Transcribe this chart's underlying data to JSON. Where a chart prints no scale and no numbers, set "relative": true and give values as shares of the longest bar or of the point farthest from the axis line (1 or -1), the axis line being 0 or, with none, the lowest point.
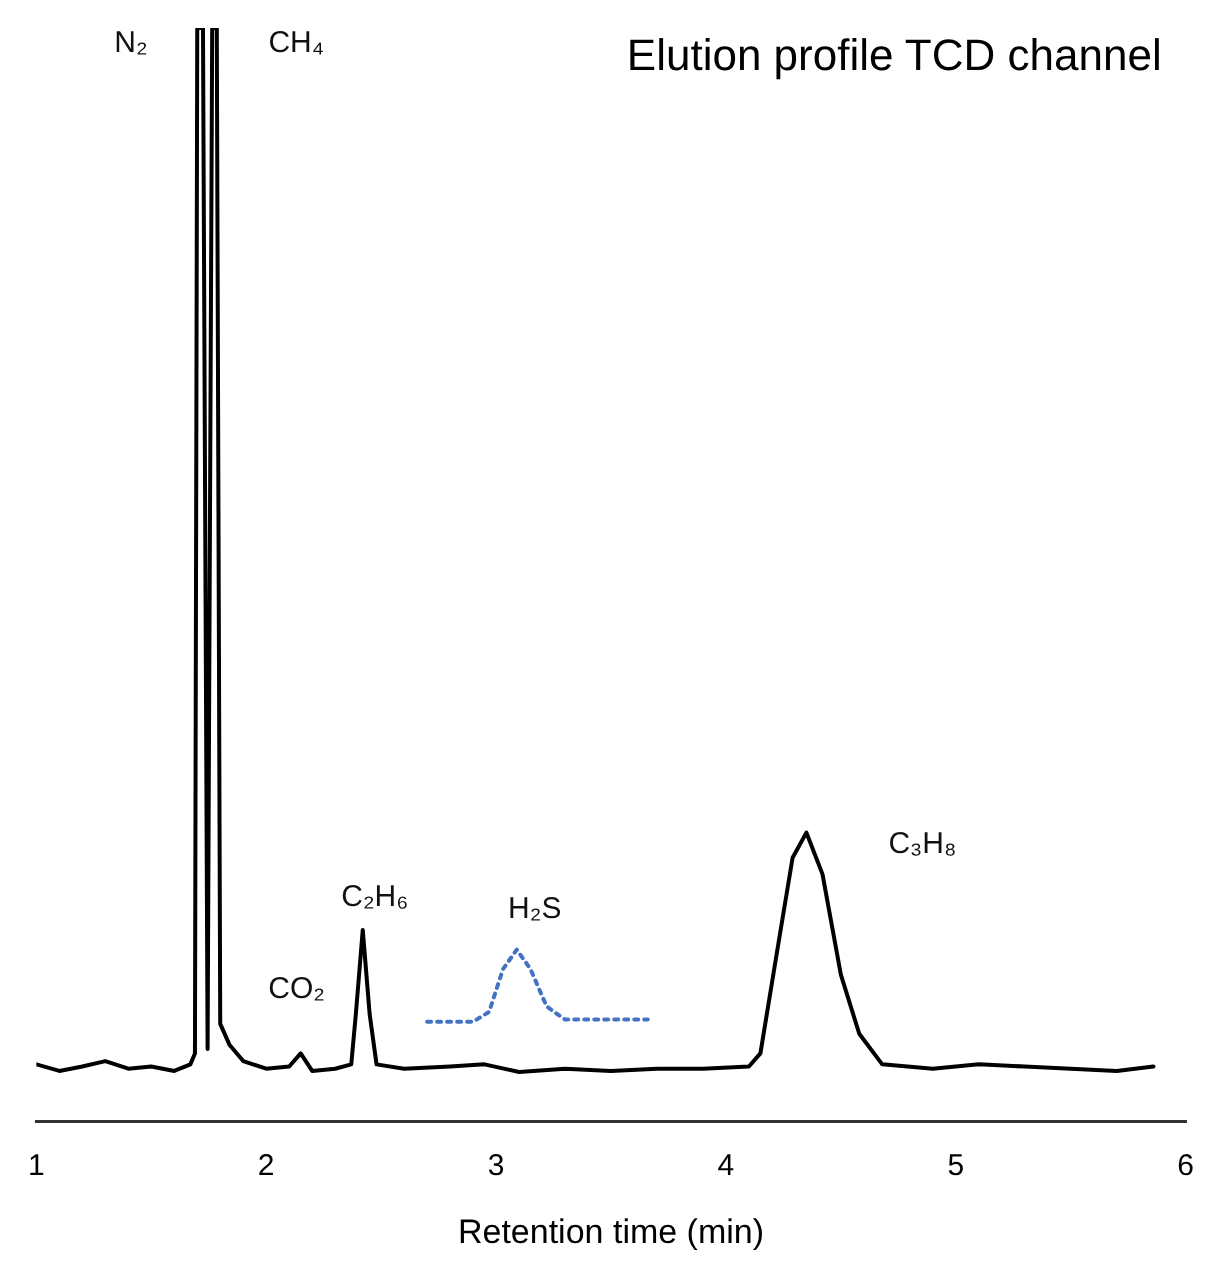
{
  "chart_data": {
    "type": "line",
    "title": "Elution profile TCD channel",
    "xlabel": "Retention time (min)",
    "relative": true,
    "grid": false,
    "legend": false,
    "xlim": [
      1,
      6
    ],
    "xticks": [
      1,
      2,
      3,
      4,
      5,
      6
    ],
    "series": [
      {
        "color": "#000000",
        "line_style": "solid",
        "x": [
          1.0,
          1.1,
          1.2,
          1.3,
          1.4,
          1.5,
          1.6,
          1.67,
          1.69,
          1.7,
          1.725,
          1.745,
          1.765,
          1.785,
          1.8,
          1.84,
          1.9,
          2.0,
          2.1,
          2.15,
          2.2,
          2.3,
          2.37,
          2.39,
          2.42,
          2.45,
          2.48,
          2.6,
          2.8,
          2.95,
          3.1,
          3.3,
          3.5,
          3.7,
          3.9,
          4.1,
          4.15,
          4.22,
          4.29,
          4.35,
          4.42,
          4.5,
          4.58,
          4.68,
          4.9,
          5.1,
          5.3,
          5.5,
          5.7,
          5.86
        ],
        "values": [
          0.052,
          0.046,
          0.05,
          0.055,
          0.048,
          0.05,
          0.046,
          0.052,
          0.062,
          1,
          1,
          0.066,
          1,
          1,
          0.089,
          0.07,
          0.055,
          0.048,
          0.05,
          0.062,
          0.046,
          0.048,
          0.052,
          0.098,
          0.175,
          0.098,
          0.052,
          0.048,
          0.05,
          0.052,
          0.045,
          0.048,
          0.046,
          0.048,
          0.048,
          0.05,
          0.062,
          0.152,
          0.241,
          0.264,
          0.226,
          0.134,
          0.08,
          0.052,
          0.048,
          0.052,
          0.05,
          0.048,
          0.046,
          0.05
        ]
      },
      {
        "color": "#4472c4",
        "line_style": "dotted",
        "x": [
          2.7,
          2.9,
          2.97,
          3.03,
          3.09,
          3.15,
          3.22,
          3.3,
          3.5,
          3.66
        ],
        "values": [
          0.091,
          0.091,
          0.1,
          0.139,
          0.157,
          0.139,
          0.105,
          0.093,
          0.093,
          0.093
        ]
      }
    ],
    "annotations": [
      {
        "text": "N₂",
        "x": 1.725,
        "y": 1
      },
      {
        "text": "CH₄",
        "x": 1.765,
        "y": 1
      },
      {
        "text": "CO₂",
        "x": 2.15,
        "y": 0.062
      },
      {
        "text": "C₂H₆",
        "x": 2.42,
        "y": 0.175
      },
      {
        "text": "H₂S",
        "x": 3.09,
        "y": 0.157
      },
      {
        "text": "C₃H₈",
        "x": 4.35,
        "y": 0.264
      }
    ]
  }
}
